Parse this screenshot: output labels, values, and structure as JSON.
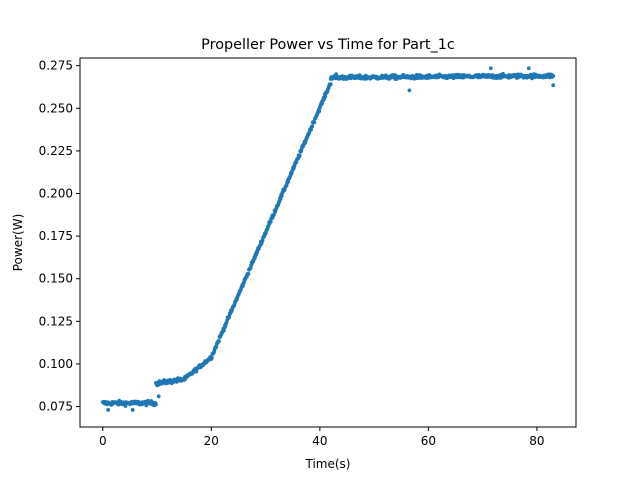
{
  "chart_data": {
    "type": "scatter",
    "title": "Propeller Power vs Time for Part_1c",
    "xlabel": "Time(s)",
    "ylabel": "Power(W)",
    "xlim": [
      -4.2,
      87.2
    ],
    "ylim": [
      0.063,
      0.2795
    ],
    "xticks": [
      0,
      20,
      40,
      60,
      80
    ],
    "yticks": [
      0.075,
      0.1,
      0.125,
      0.15,
      0.175,
      0.2,
      0.225,
      0.25,
      0.275
    ],
    "grid": false,
    "legend": false,
    "marker_color": "#1f77b4",
    "series": [
      {
        "phases": [
          {
            "x_start": 0.0,
            "x_end": 9.8,
            "y_start": 0.077,
            "y_end": 0.077,
            "spread": 0.0012,
            "count": 95
          },
          {
            "x_start": 9.8,
            "x_end": 15.0,
            "y_start": 0.0885,
            "y_end": 0.091,
            "spread": 0.0012,
            "count": 50
          },
          {
            "x_start": 15.0,
            "x_end": 20.0,
            "y_start": 0.091,
            "y_end": 0.104,
            "spread": 0.001,
            "count": 50
          },
          {
            "x_start": 20.0,
            "x_end": 42.0,
            "y_start": 0.104,
            "y_end": 0.265,
            "spread": 0.001,
            "count": 220
          },
          {
            "x_start": 42.0,
            "x_end": 83.0,
            "y_start": 0.268,
            "y_end": 0.269,
            "spread": 0.0011,
            "count": 400
          }
        ],
        "outliers": [
          {
            "x": 1.0,
            "y": 0.073
          },
          {
            "x": 5.5,
            "y": 0.073
          },
          {
            "x": 10.3,
            "y": 0.081
          },
          {
            "x": 43.0,
            "y": 0.27
          },
          {
            "x": 56.5,
            "y": 0.2605
          },
          {
            "x": 71.5,
            "y": 0.2735
          },
          {
            "x": 78.5,
            "y": 0.2735
          },
          {
            "x": 83.0,
            "y": 0.2635
          }
        ]
      }
    ]
  }
}
